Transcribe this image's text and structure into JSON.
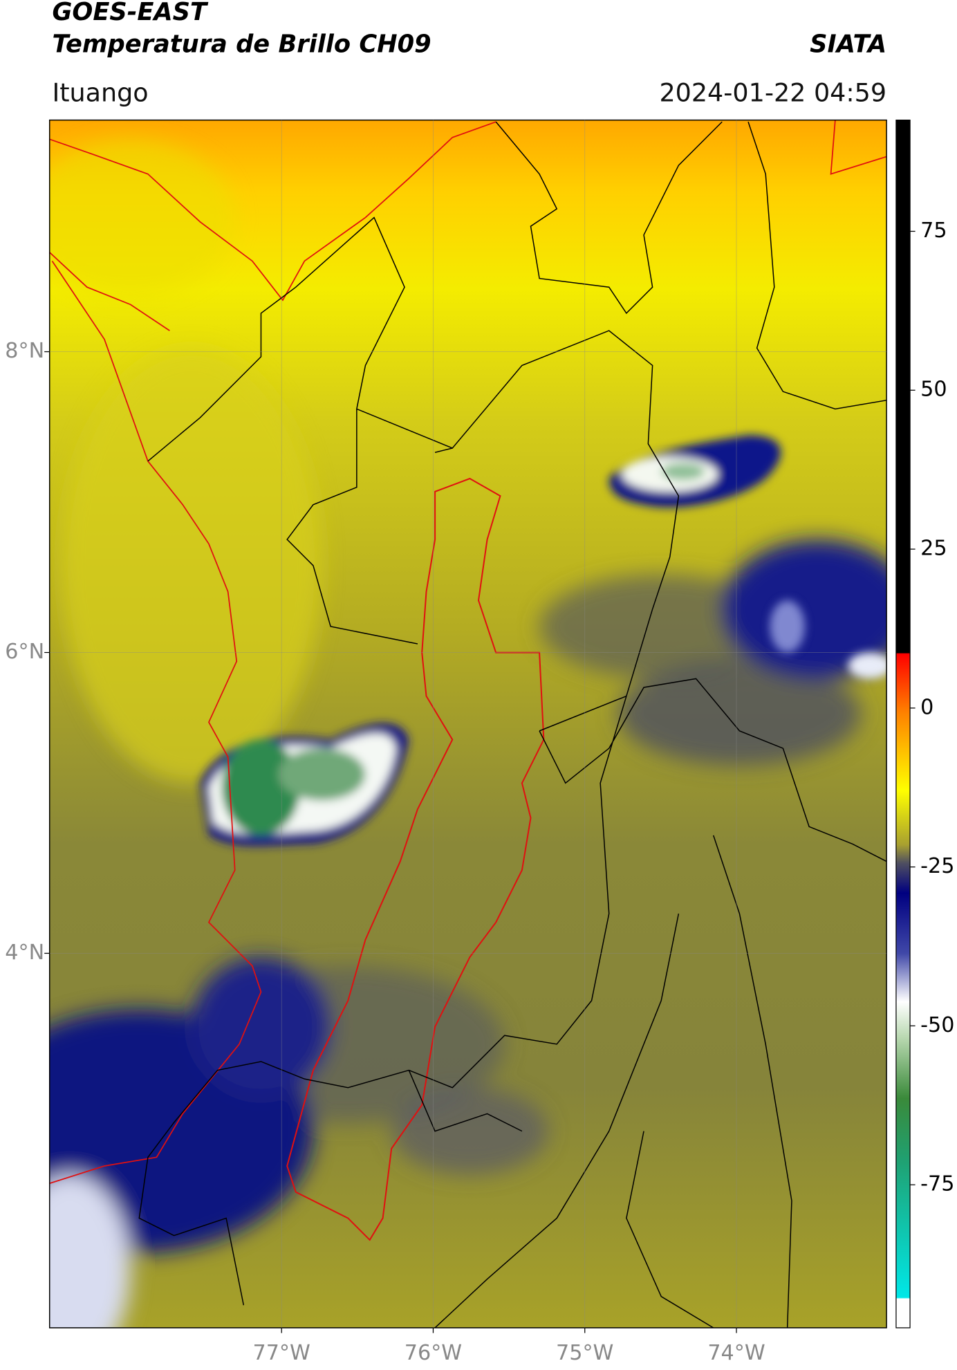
{
  "header": {
    "title": "GOES-EAST",
    "subtitle": "Temperatura de Brillo CH09",
    "source": "SIATA",
    "location": "Ituango",
    "datetime": "2024-01-22 04:59"
  },
  "map": {
    "xlim": [
      -78.53,
      -73.01
    ],
    "ylim": [
      1.51,
      9.54
    ],
    "grid": true,
    "xticks": [
      {
        "value": -77,
        "label": "77°W"
      },
      {
        "value": -76,
        "label": "76°W"
      },
      {
        "value": -75,
        "label": "75°W"
      },
      {
        "value": -74,
        "label": "74°W"
      }
    ],
    "yticks": [
      {
        "value": 4,
        "label": "4°N"
      },
      {
        "value": 6,
        "label": "6°N"
      },
      {
        "value": 8,
        "label": "8°N"
      }
    ]
  },
  "colorbar": {
    "lim": [
      -97.5,
      92.5
    ],
    "ticks": [
      -75,
      -50,
      -25,
      0,
      25,
      50,
      75
    ]
  }
}
